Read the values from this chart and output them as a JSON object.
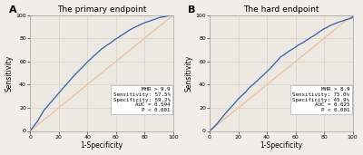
{
  "panel_A": {
    "title": "The primary endpoint",
    "label": "A",
    "annotation_lines": [
      "MHR > 9.9",
      "Sensitivity: 57.5%",
      "Specificity: 59.2%",
      "AUC = 0.594",
      "P < 0.001"
    ],
    "auc": 0.594,
    "roc_seed": 101,
    "curve_shape": "primary"
  },
  "panel_B": {
    "title": "The hard endpoint",
    "label": "B",
    "annotation_lines": [
      "MHR > 8.9",
      "Sensitivity: 75.0%",
      "Specificity: 45.9%",
      "AUC = 0.625",
      "P < 0.001"
    ],
    "auc": 0.625,
    "roc_seed": 202,
    "curve_shape": "hard"
  },
  "roc_color": "#3060a8",
  "diag_color": "#e8c0a0",
  "fig_bgcolor": "#f2ede8",
  "plot_bgcolor": "#ede8e2",
  "grid_color": "#d8d0c8",
  "spine_color": "#a0a0a0",
  "xlabel": "1-Specificity",
  "ylabel": "Sensitivity",
  "tick_labels": [
    0,
    20,
    40,
    60,
    80,
    100
  ],
  "figsize": [
    4.0,
    1.71
  ],
  "dpi": 100,
  "ann_fontsize": 4.2,
  "axis_fontsize": 5.5,
  "title_fontsize": 6.5,
  "label_fontsize": 8
}
